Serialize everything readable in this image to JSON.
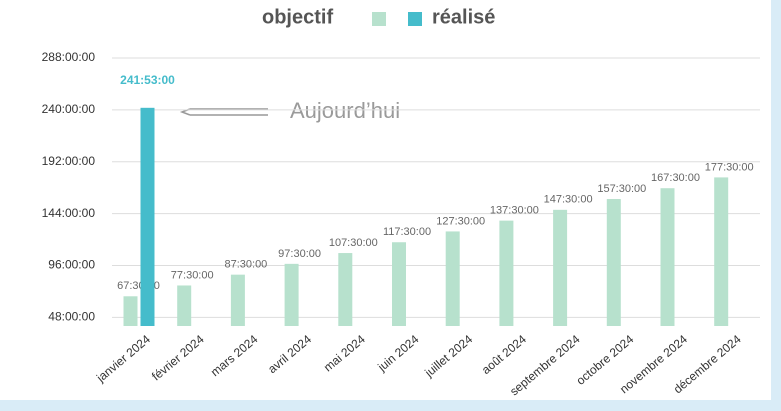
{
  "chart_data": {
    "type": "bar",
    "legend_position": "top",
    "annotation": "Aujourd’hui",
    "categories": [
      "janvier 2024",
      "février 2024",
      "mars 2024",
      "avril 2024",
      "mai 2024",
      "juin 2024",
      "juillet 2024",
      "août 2024",
      "septembre 2024",
      "octobre 2024",
      "novembre 2024",
      "décembre 2024"
    ],
    "series": [
      {
        "name": "objectif",
        "color": "#b7e1cd",
        "values": [
          67.5,
          77.5,
          87.5,
          97.5,
          107.5,
          117.5,
          127.5,
          137.5,
          147.5,
          157.5,
          167.5,
          177.5
        ],
        "value_labels": [
          "67:30:00",
          "77:30:00",
          "87:30:00",
          "97:30:00",
          "107:30:00",
          "117:30:00",
          "127:30:00",
          "137:30:00",
          "147:30:00",
          "157:30:00",
          "167:30:00",
          "177:30:00"
        ]
      },
      {
        "name": "réalisé",
        "color": "#45bccb",
        "values": [
          241.8833,
          null,
          null,
          null,
          null,
          null,
          null,
          null,
          null,
          null,
          null,
          null
        ],
        "value_labels": [
          "241:53:00",
          null,
          null,
          null,
          null,
          null,
          null,
          null,
          null,
          null,
          null,
          null
        ]
      }
    ],
    "ylim": [
      40,
      300
    ],
    "yticks": [
      {
        "value": 48,
        "label": "48:00:00"
      },
      {
        "value": 96,
        "label": "96:00:00"
      },
      {
        "value": 144,
        "label": "144:00:00"
      },
      {
        "value": 192,
        "label": "192:00:00"
      },
      {
        "value": 240,
        "label": "240:00:00"
      },
      {
        "value": 288,
        "label": "288:00:00"
      }
    ],
    "grid": true
  }
}
